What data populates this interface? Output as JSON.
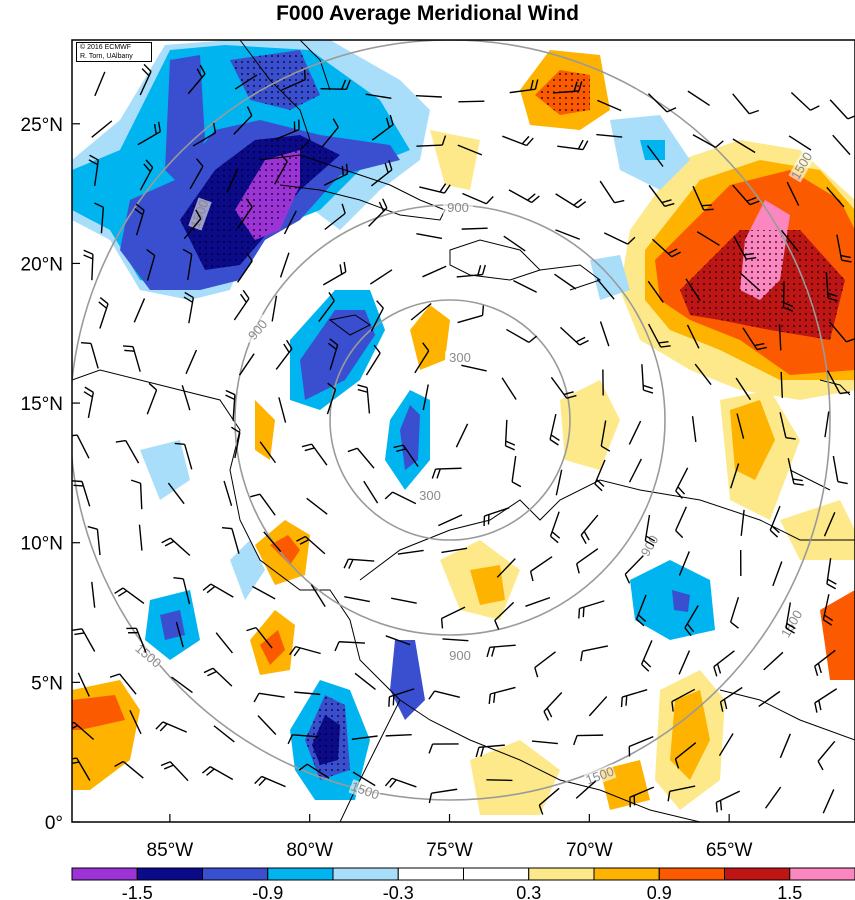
{
  "title": "F000 Average Meridional Wind",
  "credit": {
    "line1": "© 2016 ECMWF",
    "line2": "R. Torn, UAlbany"
  },
  "lat_labels": [
    "0°",
    "5°N",
    "10°N",
    "15°N",
    "20°N",
    "25°N"
  ],
  "lon_labels": [
    "85°W",
    "80°W",
    "75°W",
    "70°W",
    "65°W"
  ],
  "contour_labels": [
    "300",
    "300",
    "900",
    "900",
    "900",
    "900",
    "1500",
    "1500",
    "1500",
    "1500",
    "1500",
    "1500"
  ],
  "colorbar": {
    "colors": [
      "#9c33d6",
      "#0a0a8a",
      "#3a4fcf",
      "#00b4f0",
      "#a9defa",
      "#ffffff",
      "#ffffff",
      "#fde98a",
      "#fdb300",
      "#fb5a00",
      "#c01515",
      "#fb86c0"
    ],
    "labels": [
      "-1.5",
      "-0.9",
      "-0.3",
      "0.3",
      "0.9",
      "1.5"
    ]
  },
  "chart_data": {
    "type": "heatmap",
    "title": "F000 Average Meridional Wind",
    "x_ticks": [
      "85°W",
      "80°W",
      "75°W",
      "70°W",
      "65°W"
    ],
    "y_ticks": [
      "0°",
      "5°N",
      "10°N",
      "15°N",
      "20°N",
      "25°N"
    ],
    "xlim": [
      -88.5,
      -60.5
    ],
    "ylim": [
      0,
      28
    ],
    "levels": [
      -1.5,
      -0.9,
      -0.3,
      0.3,
      0.9,
      1.5
    ],
    "range_rings": [
      300,
      900,
      1500
    ],
    "center": {
      "lon": -75,
      "lat": 14
    }
  }
}
